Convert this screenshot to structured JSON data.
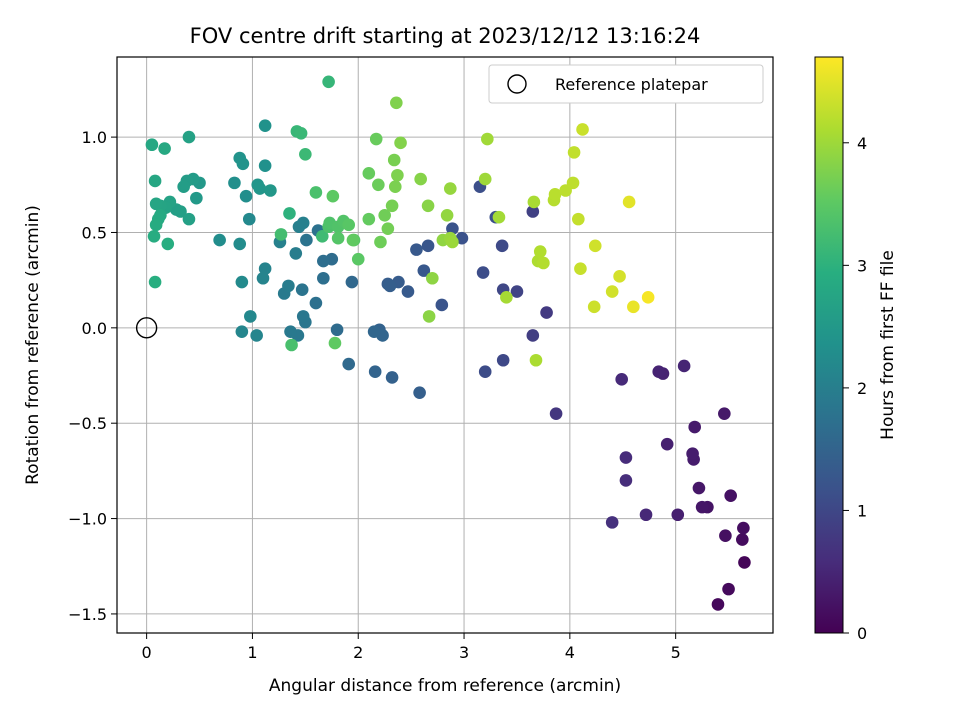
{
  "chart_data": {
    "type": "scatter",
    "title": "FOV centre drift starting at 2023/12/12 13:16:24",
    "xlabel": "Angular distance from reference (arcmin)",
    "ylabel": "Rotation from reference (arcmin)",
    "xlim": [
      -0.28,
      5.92
    ],
    "ylim": [
      -1.6,
      1.42
    ],
    "xticks": [
      0,
      1,
      2,
      3,
      4,
      5
    ],
    "yticks": [
      -1.5,
      -1.0,
      -0.5,
      0.0,
      0.5,
      1.0
    ],
    "ytick_labels": [
      "−1.5",
      "−1.0",
      "−0.5",
      "0.0",
      "0.5",
      "1.0"
    ],
    "grid": true,
    "colorbar": {
      "label": "Hours from first FF file",
      "range": [
        0,
        4.7
      ],
      "ticks": [
        0,
        1,
        2,
        3,
        4
      ],
      "colormap": "viridis"
    },
    "legend": {
      "position": "top-right",
      "entries": [
        {
          "label": "Reference platepar",
          "marker": "open-circle"
        }
      ]
    },
    "reference_point": {
      "x": 0.0,
      "y": 0.0
    },
    "points": [
      [
        5.65,
        -1.23,
        0.05
      ],
      [
        5.4,
        -1.45,
        0.1
      ],
      [
        5.5,
        -1.37,
        0.12
      ],
      [
        5.63,
        -1.11,
        0.15
      ],
      [
        5.64,
        -1.05,
        0.18
      ],
      [
        5.47,
        -1.09,
        0.2
      ],
      [
        5.52,
        -0.88,
        0.22
      ],
      [
        5.3,
        -0.94,
        0.25
      ],
      [
        5.25,
        -0.94,
        0.28
      ],
      [
        5.22,
        -0.84,
        0.3
      ],
      [
        5.46,
        -0.45,
        0.32
      ],
      [
        5.18,
        -0.52,
        0.34
      ],
      [
        5.17,
        -0.69,
        0.36
      ],
      [
        5.16,
        -0.66,
        0.38
      ],
      [
        5.02,
        -0.98,
        0.4
      ],
      [
        4.92,
        -0.61,
        0.42
      ],
      [
        4.88,
        -0.24,
        0.44
      ],
      [
        4.84,
        -0.23,
        0.46
      ],
      [
        5.08,
        -0.2,
        0.48
      ],
      [
        4.72,
        -0.98,
        0.52
      ],
      [
        4.49,
        -0.27,
        0.55
      ],
      [
        4.53,
        -0.68,
        0.58
      ],
      [
        4.53,
        -0.8,
        0.6
      ],
      [
        4.4,
        -1.02,
        0.65
      ],
      [
        3.87,
        -0.45,
        0.75
      ],
      [
        3.78,
        0.08,
        0.8
      ],
      [
        3.65,
        -0.04,
        0.85
      ],
      [
        3.65,
        0.61,
        0.9
      ],
      [
        3.5,
        0.19,
        0.95
      ],
      [
        3.37,
        0.2,
        1.0
      ],
      [
        3.37,
        -0.17,
        1.02
      ],
      [
        3.36,
        0.43,
        1.05
      ],
      [
        3.2,
        -0.23,
        1.08
      ],
      [
        3.18,
        0.29,
        1.1
      ],
      [
        3.15,
        0.74,
        1.12
      ],
      [
        3.3,
        0.58,
        1.15
      ],
      [
        2.98,
        0.47,
        1.18
      ],
      [
        2.89,
        0.52,
        1.2
      ],
      [
        2.79,
        0.12,
        1.22
      ],
      [
        2.66,
        0.43,
        1.25
      ],
      [
        2.62,
        0.3,
        1.28
      ],
      [
        2.55,
        0.41,
        1.3
      ],
      [
        2.47,
        0.19,
        1.33
      ],
      [
        2.38,
        0.24,
        1.35
      ],
      [
        2.28,
        0.23,
        1.38
      ],
      [
        2.3,
        0.22,
        1.4
      ],
      [
        2.58,
        -0.34,
        1.42
      ],
      [
        2.32,
        -0.26,
        1.45
      ],
      [
        2.2,
        -0.01,
        1.47
      ],
      [
        2.16,
        -0.23,
        1.5
      ],
      [
        2.23,
        -0.04,
        1.52
      ],
      [
        2.15,
        -0.02,
        1.55
      ],
      [
        1.94,
        0.24,
        1.57
      ],
      [
        1.91,
        -0.19,
        1.6
      ],
      [
        1.8,
        -0.01,
        1.63
      ],
      [
        1.75,
        0.36,
        1.65
      ],
      [
        1.67,
        0.35,
        1.68
      ],
      [
        1.67,
        0.26,
        1.7
      ],
      [
        1.6,
        0.13,
        1.72
      ],
      [
        1.62,
        0.51,
        1.75
      ],
      [
        1.51,
        0.46,
        1.78
      ],
      [
        1.47,
        0.2,
        1.8
      ],
      [
        1.5,
        0.03,
        1.83
      ],
      [
        1.48,
        0.06,
        1.85
      ],
      [
        1.43,
        -0.04,
        1.88
      ],
      [
        1.36,
        -0.02,
        1.9
      ],
      [
        1.3,
        0.18,
        1.92
      ],
      [
        1.34,
        0.22,
        1.95
      ],
      [
        1.41,
        0.39,
        1.98
      ],
      [
        1.44,
        0.53,
        2.0
      ],
      [
        1.48,
        0.55,
        2.02
      ],
      [
        1.26,
        0.45,
        2.05
      ],
      [
        1.12,
        0.31,
        2.08
      ],
      [
        1.1,
        0.26,
        2.1
      ],
      [
        1.04,
        -0.04,
        2.12
      ],
      [
        0.9,
        -0.02,
        2.15
      ],
      [
        0.98,
        0.06,
        2.18
      ],
      [
        0.97,
        0.57,
        2.2
      ],
      [
        0.9,
        0.24,
        2.22
      ],
      [
        0.88,
        0.44,
        2.25
      ],
      [
        0.69,
        0.46,
        2.28
      ],
      [
        0.94,
        0.69,
        2.3
      ],
      [
        0.83,
        0.76,
        2.32
      ],
      [
        1.12,
        0.85,
        2.35
      ],
      [
        1.12,
        1.06,
        2.38
      ],
      [
        0.88,
        0.89,
        2.4
      ],
      [
        0.91,
        0.86,
        2.42
      ],
      [
        1.05,
        0.75,
        2.44
      ],
      [
        1.07,
        0.73,
        2.46
      ],
      [
        1.17,
        0.72,
        2.48
      ],
      [
        0.5,
        0.76,
        2.5
      ],
      [
        0.47,
        0.68,
        2.52
      ],
      [
        0.44,
        0.78,
        2.55
      ],
      [
        0.38,
        0.77,
        2.58
      ],
      [
        0.35,
        0.74,
        2.6
      ],
      [
        0.28,
        0.62,
        2.62
      ],
      [
        0.32,
        0.61,
        2.64
      ],
      [
        0.4,
        0.57,
        2.66
      ],
      [
        0.4,
        1.0,
        2.68
      ],
      [
        0.22,
        0.66,
        2.7
      ],
      [
        0.18,
        0.63,
        2.72
      ],
      [
        0.13,
        0.64,
        2.74
      ],
      [
        0.09,
        0.65,
        2.76
      ],
      [
        0.08,
        0.77,
        2.78
      ],
      [
        0.05,
        0.96,
        2.8
      ],
      [
        0.17,
        0.94,
        2.82
      ],
      [
        0.13,
        0.59,
        2.84
      ],
      [
        0.11,
        0.57,
        2.86
      ],
      [
        0.09,
        0.54,
        2.88
      ],
      [
        0.07,
        0.48,
        2.9
      ],
      [
        0.2,
        0.44,
        2.92
      ],
      [
        0.08,
        0.24,
        2.94
      ],
      [
        1.35,
        0.6,
        3.0
      ],
      [
        1.72,
        1.29,
        3.1
      ],
      [
        1.42,
        1.03,
        3.12
      ],
      [
        1.46,
        1.02,
        3.14
      ],
      [
        1.5,
        0.91,
        3.16
      ],
      [
        1.66,
        0.48,
        3.2
      ],
      [
        1.27,
        0.49,
        3.25
      ],
      [
        1.37,
        -0.09,
        3.3
      ],
      [
        1.6,
        0.71,
        3.32
      ],
      [
        1.72,
        0.53,
        3.34
      ],
      [
        1.73,
        0.55,
        3.36
      ],
      [
        1.81,
        0.53,
        3.38
      ],
      [
        1.86,
        0.56,
        3.4
      ],
      [
        1.81,
        0.47,
        3.42
      ],
      [
        1.96,
        0.46,
        3.44
      ],
      [
        1.91,
        0.54,
        3.46
      ],
      [
        2.0,
        0.36,
        3.48
      ],
      [
        1.76,
        0.69,
        3.5
      ],
      [
        1.78,
        -0.08,
        3.52
      ],
      [
        1.95,
        0.46,
        3.54
      ],
      [
        2.1,
        0.57,
        3.56
      ],
      [
        2.1,
        0.81,
        3.58
      ],
      [
        2.17,
        0.99,
        3.6
      ],
      [
        2.19,
        0.75,
        3.62
      ],
      [
        2.21,
        0.45,
        3.64
      ],
      [
        2.25,
        0.59,
        3.66
      ],
      [
        2.28,
        0.52,
        3.68
      ],
      [
        2.32,
        0.64,
        3.7
      ],
      [
        2.34,
        0.88,
        3.72
      ],
      [
        2.35,
        0.74,
        3.74
      ],
      [
        2.37,
        0.8,
        3.76
      ],
      [
        2.36,
        1.18,
        3.78
      ],
      [
        2.4,
        0.97,
        3.8
      ],
      [
        2.59,
        0.78,
        3.82
      ],
      [
        2.66,
        0.64,
        3.84
      ],
      [
        2.67,
        0.06,
        3.86
      ],
      [
        2.7,
        0.26,
        3.88
      ],
      [
        2.8,
        0.46,
        3.9
      ],
      [
        2.84,
        0.59,
        3.92
      ],
      [
        2.87,
        0.73,
        3.94
      ],
      [
        2.87,
        0.47,
        3.96
      ],
      [
        2.89,
        0.45,
        3.98
      ],
      [
        3.2,
        0.78,
        4.0
      ],
      [
        3.22,
        0.99,
        4.02
      ],
      [
        3.33,
        0.58,
        4.04
      ],
      [
        3.4,
        0.16,
        4.06
      ],
      [
        3.66,
        0.66,
        4.08
      ],
      [
        3.68,
        -0.17,
        4.1
      ],
      [
        3.7,
        0.35,
        4.12
      ],
      [
        3.72,
        0.4,
        4.14
      ],
      [
        3.75,
        0.34,
        4.16
      ],
      [
        3.85,
        0.67,
        4.18
      ],
      [
        3.86,
        0.7,
        4.2
      ],
      [
        3.96,
        0.72,
        4.22
      ],
      [
        4.03,
        0.76,
        4.24
      ],
      [
        4.04,
        0.92,
        4.26
      ],
      [
        4.08,
        0.57,
        4.28
      ],
      [
        4.1,
        0.31,
        4.3
      ],
      [
        4.12,
        1.04,
        4.32
      ],
      [
        4.23,
        0.11,
        4.34
      ],
      [
        4.24,
        0.43,
        4.36
      ],
      [
        4.4,
        0.19,
        4.38
      ],
      [
        4.47,
        0.27,
        4.4
      ],
      [
        4.56,
        0.66,
        4.5
      ],
      [
        4.6,
        0.11,
        4.55
      ],
      [
        4.74,
        0.16,
        4.65
      ]
    ]
  }
}
